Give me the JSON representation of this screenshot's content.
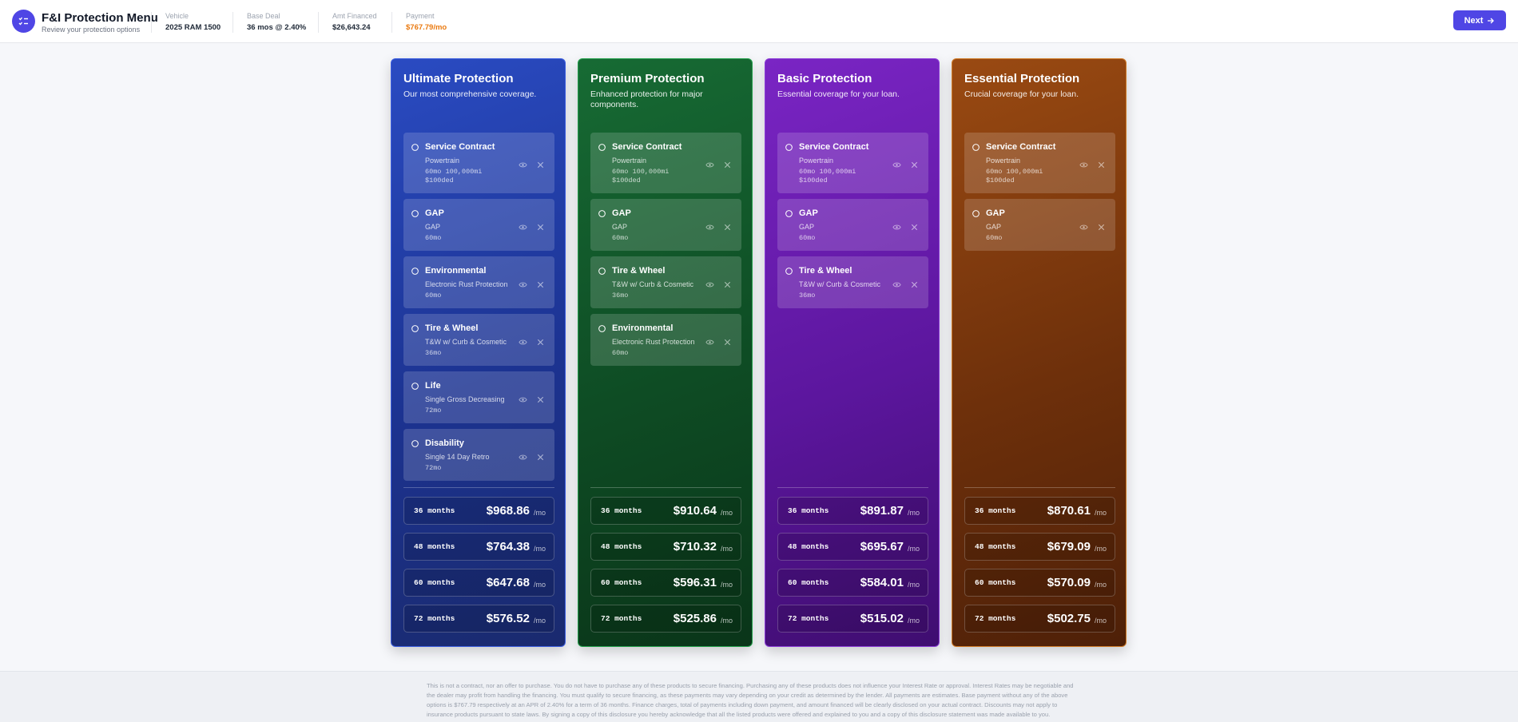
{
  "header": {
    "title": "F&I Protection Menu",
    "subtitle": "Review your protection options",
    "info": [
      {
        "label": "Vehicle",
        "value": "2025 RAM 1500"
      },
      {
        "label": "Base Deal",
        "value": "36 mos @ 2.40%"
      },
      {
        "label": "Amt Financed",
        "value": "$26,643.24"
      },
      {
        "label": "Payment",
        "value": "$767.79/mo"
      }
    ],
    "next": "Next"
  },
  "packages": [
    {
      "title": "Ultimate Protection",
      "subtitle": "Our most comprehensive coverage.",
      "products": [
        {
          "name": "Service Contract",
          "plan": "Powertrain",
          "detail": [
            "60mo 100,000mi",
            "$100ded"
          ]
        },
        {
          "name": "GAP",
          "plan": "GAP",
          "detail": [
            "60mo"
          ]
        },
        {
          "name": "Environmental",
          "plan": "Electronic Rust Protection",
          "detail": [
            "60mo"
          ]
        },
        {
          "name": "Tire & Wheel",
          "plan": "T&W w/ Curb & Cosmetic",
          "detail": [
            "36mo"
          ]
        },
        {
          "name": "Life",
          "plan": "Single Gross Decreasing",
          "detail": [
            "72mo"
          ]
        },
        {
          "name": "Disability",
          "plan": "Single 14 Day Retro",
          "detail": [
            "72mo"
          ]
        }
      ],
      "payments": [
        {
          "term": "36 months",
          "amount": "$968.86",
          "unit": "/mo"
        },
        {
          "term": "48 months",
          "amount": "$764.38",
          "unit": "/mo"
        },
        {
          "term": "60 months",
          "amount": "$647.68",
          "unit": "/mo"
        },
        {
          "term": "72 months",
          "amount": "$576.52",
          "unit": "/mo"
        }
      ]
    },
    {
      "title": "Premium Protection",
      "subtitle": "Enhanced protection for major components.",
      "products": [
        {
          "name": "Service Contract",
          "plan": "Powertrain",
          "detail": [
            "60mo 100,000mi",
            "$100ded"
          ]
        },
        {
          "name": "GAP",
          "plan": "GAP",
          "detail": [
            "60mo"
          ]
        },
        {
          "name": "Tire & Wheel",
          "plan": "T&W w/ Curb & Cosmetic",
          "detail": [
            "36mo"
          ]
        },
        {
          "name": "Environmental",
          "plan": "Electronic Rust Protection",
          "detail": [
            "60mo"
          ]
        }
      ],
      "payments": [
        {
          "term": "36 months",
          "amount": "$910.64",
          "unit": "/mo"
        },
        {
          "term": "48 months",
          "amount": "$710.32",
          "unit": "/mo"
        },
        {
          "term": "60 months",
          "amount": "$596.31",
          "unit": "/mo"
        },
        {
          "term": "72 months",
          "amount": "$525.86",
          "unit": "/mo"
        }
      ]
    },
    {
      "title": "Basic Protection",
      "subtitle": "Essential coverage for your loan.",
      "products": [
        {
          "name": "Service Contract",
          "plan": "Powertrain",
          "detail": [
            "60mo 100,000mi",
            "$100ded"
          ]
        },
        {
          "name": "GAP",
          "plan": "GAP",
          "detail": [
            "60mo"
          ]
        },
        {
          "name": "Tire & Wheel",
          "plan": "T&W w/ Curb & Cosmetic",
          "detail": [
            "36mo"
          ]
        }
      ],
      "payments": [
        {
          "term": "36 months",
          "amount": "$891.87",
          "unit": "/mo"
        },
        {
          "term": "48 months",
          "amount": "$695.67",
          "unit": "/mo"
        },
        {
          "term": "60 months",
          "amount": "$584.01",
          "unit": "/mo"
        },
        {
          "term": "72 months",
          "amount": "$515.02",
          "unit": "/mo"
        }
      ]
    },
    {
      "title": "Essential Protection",
      "subtitle": "Crucial coverage for your loan.",
      "products": [
        {
          "name": "Service Contract",
          "plan": "Powertrain",
          "detail": [
            "60mo 100,000mi",
            "$100ded"
          ]
        },
        {
          "name": "GAP",
          "plan": "GAP",
          "detail": [
            "60mo"
          ]
        }
      ],
      "payments": [
        {
          "term": "36 months",
          "amount": "$870.61",
          "unit": "/mo"
        },
        {
          "term": "48 months",
          "amount": "$679.09",
          "unit": "/mo"
        },
        {
          "term": "60 months",
          "amount": "$570.09",
          "unit": "/mo"
        },
        {
          "term": "72 months",
          "amount": "$502.75",
          "unit": "/mo"
        }
      ]
    }
  ],
  "disclaimer": "This is not a contract, nor an offer to purchase. You do not have to purchase any of these products to secure financing. Purchasing any of these products does not influence your Interest Rate or approval. Interest Rates may be negotiable and the dealer may profit from handling the financing. You must qualify to secure financing, as these payments may vary depending on your credit as determined by the lender. All payments are estimates. Base payment without any of the above options is $767.79 respectively at an APR of 2.40% for a term of 36 months. Finance charges, total of payments including down payment, and amount financed will be clearly disclosed on your actual contract. Discounts may not apply to insurance products pursuant to state laws. By signing a copy of this disclosure you hereby acknowledge that all the listed products were offered and explained to you and a copy of this disclosure statement was made available to you."
}
